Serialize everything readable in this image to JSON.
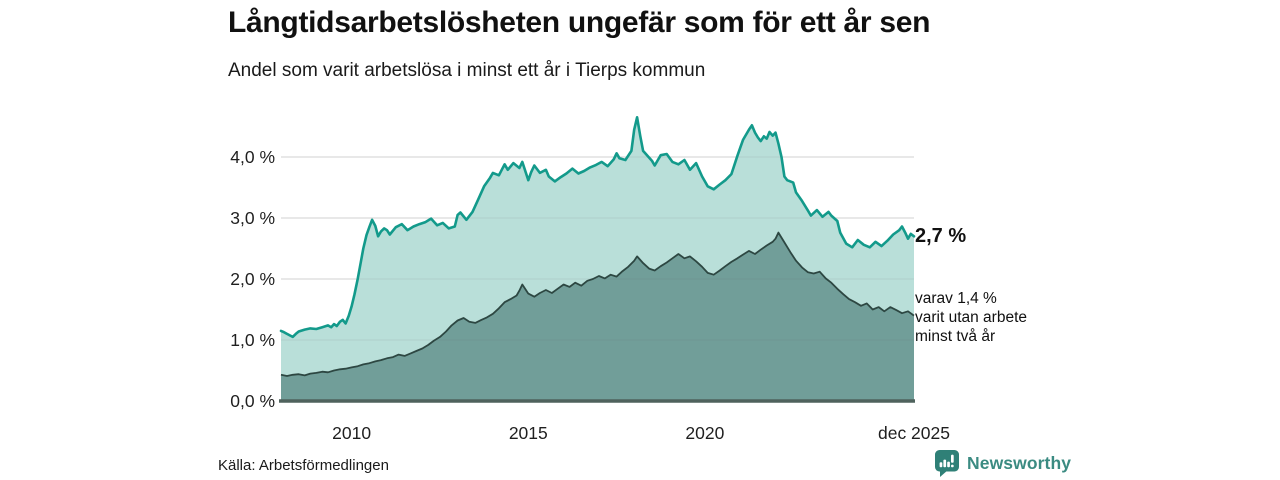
{
  "header": {
    "title": "Långtidsarbetslösheten ungefär som för ett år sen",
    "subtitle": "Andel som varit arbetslösa i minst ett år i Tierps kommun"
  },
  "annotations": {
    "latest_total": "2,7 %",
    "breakdown": [
      "varav 1,4 %",
      "varit utan arbete",
      "minst två år"
    ]
  },
  "source": "Källa: Arbetsförmedlingen",
  "branding": {
    "name": "Newsworthy",
    "icon": "bar-chart-speech-bubble-icon",
    "color": "#3b8b82"
  },
  "colors": {
    "total_line": "#139a8b",
    "total_fill": "#b9dfd9",
    "two_year_line": "#2d4742",
    "two_year_fill": "#719e99",
    "gridline": "#e1e1e1",
    "baseline": "#4f625d",
    "text": "#1f1f1f"
  },
  "chart_data": {
    "type": "area",
    "title": "Långtidsarbetslösheten ungefär som för ett år sen",
    "subtitle": "Andel som varit arbetslösa i minst ett år i Tierps kommun",
    "unit": "%",
    "xlim": [
      2008.0,
      2025.92
    ],
    "ylim": [
      0,
      4.8
    ],
    "grid": true,
    "y_axis": {
      "ticks": [
        {
          "label": "0,0 %",
          "value": 0
        },
        {
          "label": "1,0 %",
          "value": 1
        },
        {
          "label": "2,0 %",
          "value": 2
        },
        {
          "label": "3,0 %",
          "value": 3
        },
        {
          "label": "4,0 %",
          "value": 4
        }
      ]
    },
    "x_axis": {
      "ticks": [
        {
          "label": "2010",
          "year": 2010
        },
        {
          "label": "2015",
          "year": 2015
        },
        {
          "label": "2020",
          "year": 2020
        },
        {
          "label": "dec 2025",
          "year": 2025.92
        }
      ]
    },
    "series": [
      {
        "name": "Arbetslösa minst ett år (andel)",
        "latest_label": "2,7 %",
        "latest_value": 2.7,
        "points": [
          [
            2008.0,
            1.15
          ],
          [
            2008.08,
            1.13
          ],
          [
            2008.17,
            1.1
          ],
          [
            2008.33,
            1.05
          ],
          [
            2008.42,
            1.1
          ],
          [
            2008.5,
            1.14
          ],
          [
            2008.67,
            1.17
          ],
          [
            2008.83,
            1.19
          ],
          [
            2009.0,
            1.18
          ],
          [
            2009.17,
            1.21
          ],
          [
            2009.33,
            1.24
          ],
          [
            2009.42,
            1.21
          ],
          [
            2009.5,
            1.26
          ],
          [
            2009.58,
            1.23
          ],
          [
            2009.67,
            1.3
          ],
          [
            2009.75,
            1.33
          ],
          [
            2009.83,
            1.27
          ],
          [
            2009.92,
            1.4
          ],
          [
            2010.0,
            1.55
          ],
          [
            2010.08,
            1.75
          ],
          [
            2010.17,
            2.0
          ],
          [
            2010.25,
            2.25
          ],
          [
            2010.33,
            2.5
          ],
          [
            2010.42,
            2.72
          ],
          [
            2010.5,
            2.85
          ],
          [
            2010.58,
            2.97
          ],
          [
            2010.67,
            2.87
          ],
          [
            2010.75,
            2.7
          ],
          [
            2010.83,
            2.78
          ],
          [
            2010.92,
            2.83
          ],
          [
            2011.0,
            2.8
          ],
          [
            2011.08,
            2.73
          ],
          [
            2011.25,
            2.85
          ],
          [
            2011.42,
            2.9
          ],
          [
            2011.58,
            2.8
          ],
          [
            2011.75,
            2.86
          ],
          [
            2011.92,
            2.9
          ],
          [
            2012.08,
            2.93
          ],
          [
            2012.25,
            2.99
          ],
          [
            2012.42,
            2.88
          ],
          [
            2012.58,
            2.92
          ],
          [
            2012.75,
            2.83
          ],
          [
            2012.92,
            2.86
          ],
          [
            2013.0,
            3.05
          ],
          [
            2013.08,
            3.09
          ],
          [
            2013.25,
            2.97
          ],
          [
            2013.42,
            3.1
          ],
          [
            2013.58,
            3.3
          ],
          [
            2013.75,
            3.52
          ],
          [
            2013.92,
            3.66
          ],
          [
            2014.0,
            3.74
          ],
          [
            2014.17,
            3.7
          ],
          [
            2014.33,
            3.88
          ],
          [
            2014.42,
            3.79
          ],
          [
            2014.58,
            3.9
          ],
          [
            2014.75,
            3.82
          ],
          [
            2014.83,
            3.92
          ],
          [
            2015.0,
            3.62
          ],
          [
            2015.08,
            3.75
          ],
          [
            2015.17,
            3.86
          ],
          [
            2015.33,
            3.74
          ],
          [
            2015.5,
            3.79
          ],
          [
            2015.58,
            3.68
          ],
          [
            2015.75,
            3.6
          ],
          [
            2015.92,
            3.67
          ],
          [
            2016.08,
            3.73
          ],
          [
            2016.25,
            3.81
          ],
          [
            2016.42,
            3.73
          ],
          [
            2016.58,
            3.77
          ],
          [
            2016.75,
            3.83
          ],
          [
            2016.92,
            3.87
          ],
          [
            2017.08,
            3.92
          ],
          [
            2017.25,
            3.85
          ],
          [
            2017.42,
            3.96
          ],
          [
            2017.5,
            4.06
          ],
          [
            2017.58,
            3.98
          ],
          [
            2017.75,
            3.95
          ],
          [
            2017.92,
            4.1
          ],
          [
            2018.0,
            4.45
          ],
          [
            2018.08,
            4.65
          ],
          [
            2018.17,
            4.35
          ],
          [
            2018.25,
            4.1
          ],
          [
            2018.33,
            4.05
          ],
          [
            2018.5,
            3.94
          ],
          [
            2018.58,
            3.86
          ],
          [
            2018.67,
            3.95
          ],
          [
            2018.75,
            4.03
          ],
          [
            2018.92,
            4.05
          ],
          [
            2019.08,
            3.92
          ],
          [
            2019.25,
            3.88
          ],
          [
            2019.42,
            3.95
          ],
          [
            2019.58,
            3.79
          ],
          [
            2019.75,
            3.9
          ],
          [
            2019.92,
            3.68
          ],
          [
            2020.0,
            3.6
          ],
          [
            2020.08,
            3.52
          ],
          [
            2020.25,
            3.47
          ],
          [
            2020.42,
            3.55
          ],
          [
            2020.58,
            3.62
          ],
          [
            2020.75,
            3.72
          ],
          [
            2020.92,
            4.02
          ],
          [
            2021.0,
            4.15
          ],
          [
            2021.08,
            4.28
          ],
          [
            2021.25,
            4.45
          ],
          [
            2021.33,
            4.52
          ],
          [
            2021.42,
            4.4
          ],
          [
            2021.5,
            4.32
          ],
          [
            2021.58,
            4.26
          ],
          [
            2021.67,
            4.34
          ],
          [
            2021.75,
            4.3
          ],
          [
            2021.83,
            4.41
          ],
          [
            2021.92,
            4.35
          ],
          [
            2022.0,
            4.4
          ],
          [
            2022.08,
            4.22
          ],
          [
            2022.17,
            4.0
          ],
          [
            2022.25,
            3.68
          ],
          [
            2022.33,
            3.62
          ],
          [
            2022.5,
            3.58
          ],
          [
            2022.58,
            3.42
          ],
          [
            2022.75,
            3.28
          ],
          [
            2022.92,
            3.12
          ],
          [
            2023.0,
            3.04
          ],
          [
            2023.17,
            3.13
          ],
          [
            2023.33,
            3.02
          ],
          [
            2023.5,
            3.1
          ],
          [
            2023.58,
            3.04
          ],
          [
            2023.75,
            2.95
          ],
          [
            2023.83,
            2.76
          ],
          [
            2024.0,
            2.58
          ],
          [
            2024.17,
            2.52
          ],
          [
            2024.33,
            2.64
          ],
          [
            2024.5,
            2.56
          ],
          [
            2024.67,
            2.52
          ],
          [
            2024.83,
            2.61
          ],
          [
            2025.0,
            2.54
          ],
          [
            2025.17,
            2.63
          ],
          [
            2025.33,
            2.73
          ],
          [
            2025.5,
            2.8
          ],
          [
            2025.58,
            2.86
          ],
          [
            2025.67,
            2.76
          ],
          [
            2025.75,
            2.66
          ],
          [
            2025.83,
            2.74
          ],
          [
            2025.92,
            2.7
          ]
        ]
      },
      {
        "name": "varav utan arbete minst två år (andel)",
        "latest_label": "1,4 %",
        "latest_value": 1.4,
        "points": [
          [
            2008.0,
            0.43
          ],
          [
            2008.17,
            0.41
          ],
          [
            2008.33,
            0.43
          ],
          [
            2008.5,
            0.44
          ],
          [
            2008.67,
            0.42
          ],
          [
            2008.83,
            0.45
          ],
          [
            2009.0,
            0.46
          ],
          [
            2009.17,
            0.48
          ],
          [
            2009.33,
            0.47
          ],
          [
            2009.5,
            0.5
          ],
          [
            2009.67,
            0.52
          ],
          [
            2009.83,
            0.53
          ],
          [
            2010.0,
            0.55
          ],
          [
            2010.17,
            0.57
          ],
          [
            2010.33,
            0.6
          ],
          [
            2010.5,
            0.62
          ],
          [
            2010.67,
            0.65
          ],
          [
            2010.83,
            0.67
          ],
          [
            2011.0,
            0.7
          ],
          [
            2011.17,
            0.72
          ],
          [
            2011.33,
            0.76
          ],
          [
            2011.5,
            0.74
          ],
          [
            2011.67,
            0.78
          ],
          [
            2011.83,
            0.82
          ],
          [
            2012.0,
            0.86
          ],
          [
            2012.17,
            0.92
          ],
          [
            2012.33,
            0.99
          ],
          [
            2012.5,
            1.05
          ],
          [
            2012.67,
            1.14
          ],
          [
            2012.83,
            1.24
          ],
          [
            2013.0,
            1.32
          ],
          [
            2013.17,
            1.36
          ],
          [
            2013.33,
            1.3
          ],
          [
            2013.5,
            1.28
          ],
          [
            2013.67,
            1.33
          ],
          [
            2013.83,
            1.37
          ],
          [
            2014.0,
            1.43
          ],
          [
            2014.17,
            1.52
          ],
          [
            2014.33,
            1.62
          ],
          [
            2014.5,
            1.67
          ],
          [
            2014.67,
            1.73
          ],
          [
            2014.75,
            1.81
          ],
          [
            2014.83,
            1.91
          ],
          [
            2015.0,
            1.76
          ],
          [
            2015.17,
            1.71
          ],
          [
            2015.33,
            1.77
          ],
          [
            2015.5,
            1.82
          ],
          [
            2015.67,
            1.77
          ],
          [
            2015.83,
            1.84
          ],
          [
            2016.0,
            1.91
          ],
          [
            2016.17,
            1.87
          ],
          [
            2016.33,
            1.94
          ],
          [
            2016.5,
            1.89
          ],
          [
            2016.67,
            1.97
          ],
          [
            2016.83,
            2.0
          ],
          [
            2017.0,
            2.05
          ],
          [
            2017.17,
            2.01
          ],
          [
            2017.33,
            2.07
          ],
          [
            2017.5,
            2.04
          ],
          [
            2017.67,
            2.13
          ],
          [
            2017.83,
            2.2
          ],
          [
            2018.0,
            2.3
          ],
          [
            2018.08,
            2.37
          ],
          [
            2018.25,
            2.26
          ],
          [
            2018.42,
            2.17
          ],
          [
            2018.58,
            2.14
          ],
          [
            2018.75,
            2.21
          ],
          [
            2018.92,
            2.27
          ],
          [
            2019.08,
            2.34
          ],
          [
            2019.25,
            2.41
          ],
          [
            2019.42,
            2.34
          ],
          [
            2019.58,
            2.37
          ],
          [
            2019.75,
            2.29
          ],
          [
            2019.92,
            2.2
          ],
          [
            2020.08,
            2.1
          ],
          [
            2020.25,
            2.07
          ],
          [
            2020.42,
            2.14
          ],
          [
            2020.58,
            2.21
          ],
          [
            2020.75,
            2.28
          ],
          [
            2020.92,
            2.34
          ],
          [
            2021.08,
            2.4
          ],
          [
            2021.25,
            2.46
          ],
          [
            2021.42,
            2.41
          ],
          [
            2021.58,
            2.48
          ],
          [
            2021.75,
            2.55
          ],
          [
            2021.92,
            2.61
          ],
          [
            2022.0,
            2.66
          ],
          [
            2022.08,
            2.76
          ],
          [
            2022.25,
            2.6
          ],
          [
            2022.42,
            2.44
          ],
          [
            2022.58,
            2.3
          ],
          [
            2022.75,
            2.19
          ],
          [
            2022.92,
            2.11
          ],
          [
            2023.08,
            2.09
          ],
          [
            2023.25,
            2.12
          ],
          [
            2023.42,
            2.01
          ],
          [
            2023.58,
            1.94
          ],
          [
            2023.75,
            1.84
          ],
          [
            2023.92,
            1.75
          ],
          [
            2024.08,
            1.67
          ],
          [
            2024.25,
            1.62
          ],
          [
            2024.42,
            1.56
          ],
          [
            2024.58,
            1.6
          ],
          [
            2024.75,
            1.5
          ],
          [
            2024.92,
            1.54
          ],
          [
            2025.08,
            1.47
          ],
          [
            2025.25,
            1.54
          ],
          [
            2025.42,
            1.49
          ],
          [
            2025.58,
            1.44
          ],
          [
            2025.75,
            1.47
          ],
          [
            2025.92,
            1.4
          ]
        ]
      }
    ]
  }
}
